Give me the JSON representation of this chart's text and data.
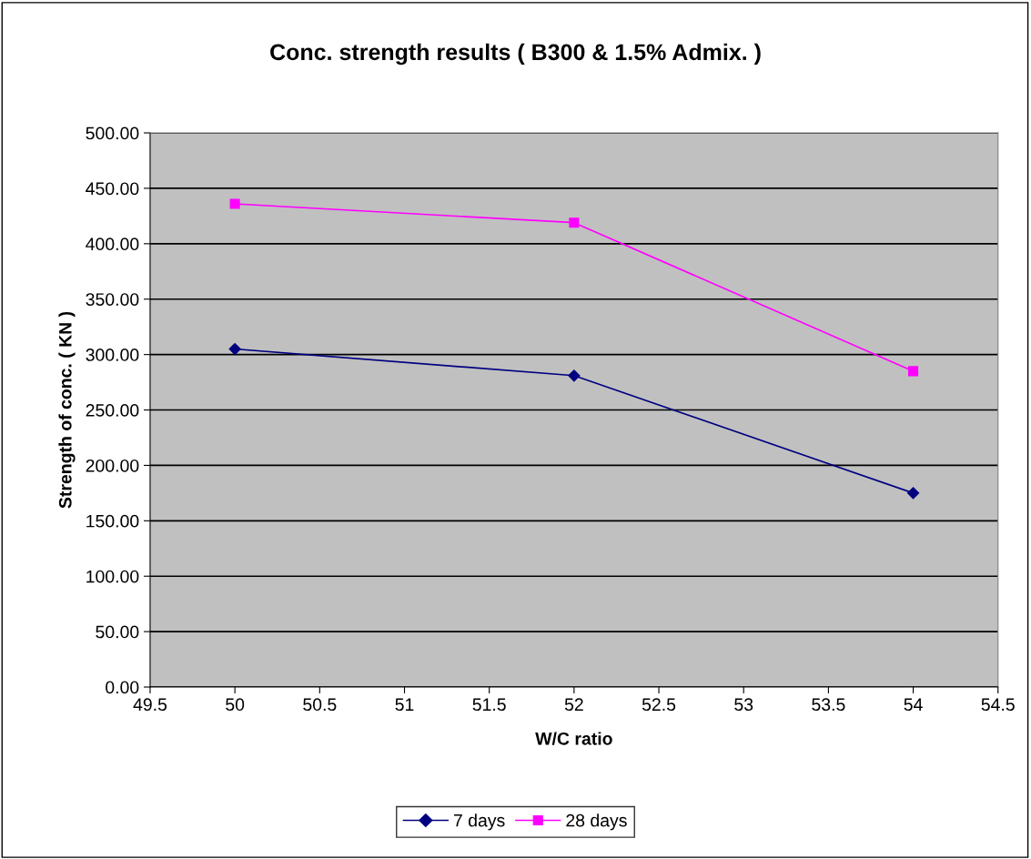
{
  "chart_data": {
    "type": "line",
    "title": "Conc. strength results ( B300 & 1.5% Admix. )",
    "xlabel": "W/C ratio",
    "ylabel": "Strength of conc. ( KN )",
    "x": [
      50,
      52,
      54
    ],
    "series": [
      {
        "name": "7 days",
        "color": "#000080",
        "marker": "diamond",
        "values": [
          305,
          281,
          175
        ]
      },
      {
        "name": "28 days",
        "color": "#ff00ff",
        "marker": "square",
        "values": [
          436,
          419,
          285
        ]
      }
    ],
    "xlim": [
      49.5,
      54.5
    ],
    "xticks": [
      49.5,
      50,
      50.5,
      51,
      51.5,
      52,
      52.5,
      53,
      53.5,
      54,
      54.5
    ],
    "ylim": [
      0,
      500
    ],
    "yticks": [
      {
        "value": 0,
        "label": "0.00"
      },
      {
        "value": 50,
        "label": "50.00"
      },
      {
        "value": 100,
        "label": "100.00"
      },
      {
        "value": 150,
        "label": "150.00"
      },
      {
        "value": 200,
        "label": "200.00"
      },
      {
        "value": 250,
        "label": "250.00"
      },
      {
        "value": 300,
        "label": "300.00"
      },
      {
        "value": 350,
        "label": "350.00"
      },
      {
        "value": 400,
        "label": "400.00"
      },
      {
        "value": 450,
        "label": "450.00"
      },
      {
        "value": 500,
        "label": "500.00"
      }
    ],
    "grid": "y",
    "legend": "bottom",
    "line_style": "solid"
  }
}
